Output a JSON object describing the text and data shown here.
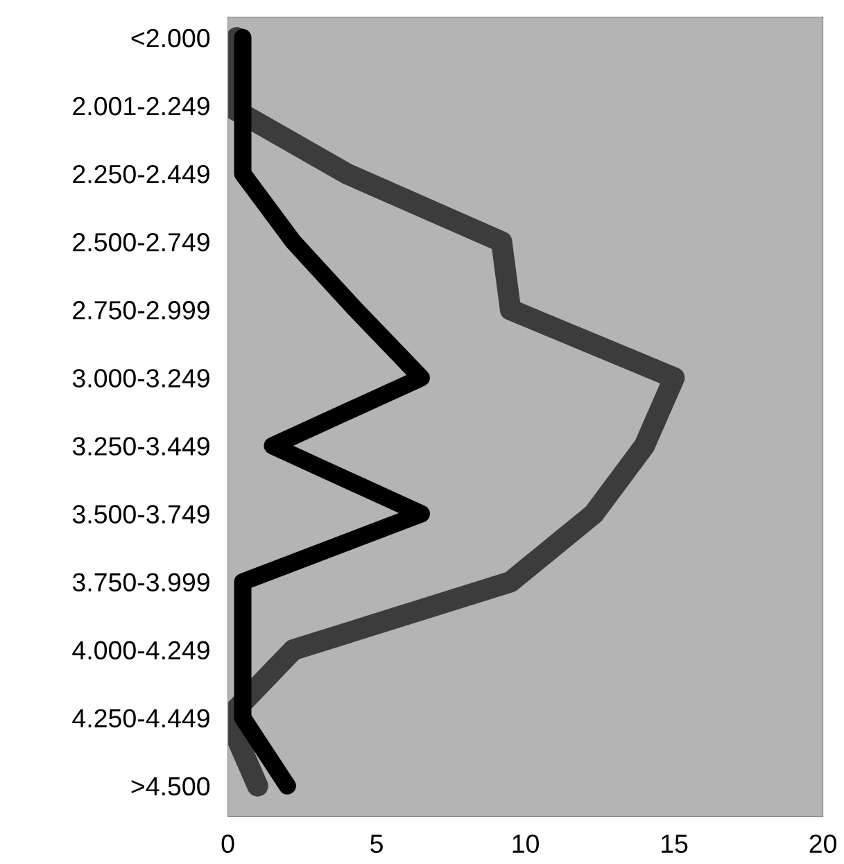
{
  "chart_data": {
    "type": "line",
    "orientation": "horizontal",
    "categories": [
      "<2.000",
      "2.001-2.249",
      "2.250-2.449",
      "2.500-2.749",
      "2.750-2.999",
      "3.000-3.249",
      "3.250-3.449",
      "3.500-3.749",
      "3.750-3.999",
      "4.000-4.249",
      "4.250-4.449",
      ">4.500"
    ],
    "series": [
      {
        "color": "#3c3c3c",
        "values": [
          0.3,
          0,
          4,
          9.2,
          9.5,
          15,
          14,
          12.3,
          9.5,
          2.2,
          0,
          1
        ]
      },
      {
        "color": "#000000",
        "values": [
          0.5,
          0.5,
          0.5,
          2.2,
          4.3,
          6.5,
          1.5,
          6.5,
          0.5,
          0.5,
          0.5,
          2
        ]
      }
    ],
    "xlim": [
      0,
      20
    ],
    "xticks": [
      0,
      5,
      10,
      15,
      20
    ],
    "line_style": "solid"
  }
}
